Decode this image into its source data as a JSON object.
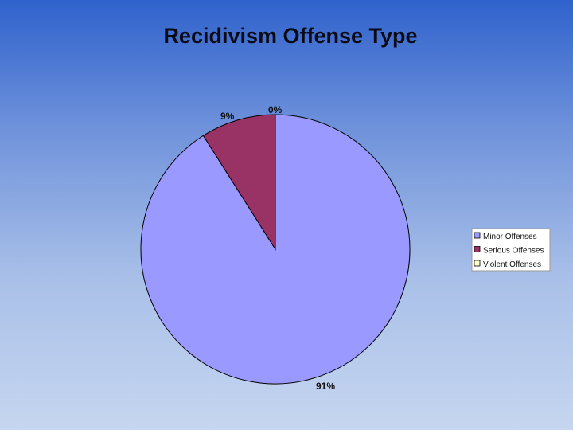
{
  "chart_data": {
    "type": "pie",
    "title": "Recidivism Offense Type",
    "categories": [
      "Minor Offenses",
      "Serious Offenses",
      "Violent Offenses"
    ],
    "values": [
      91,
      9,
      0
    ],
    "labels": [
      "91%",
      "9%",
      "0%"
    ],
    "colors": [
      "#9999ff",
      "#993366",
      "#ffffcc"
    ],
    "legend_position": "right"
  }
}
